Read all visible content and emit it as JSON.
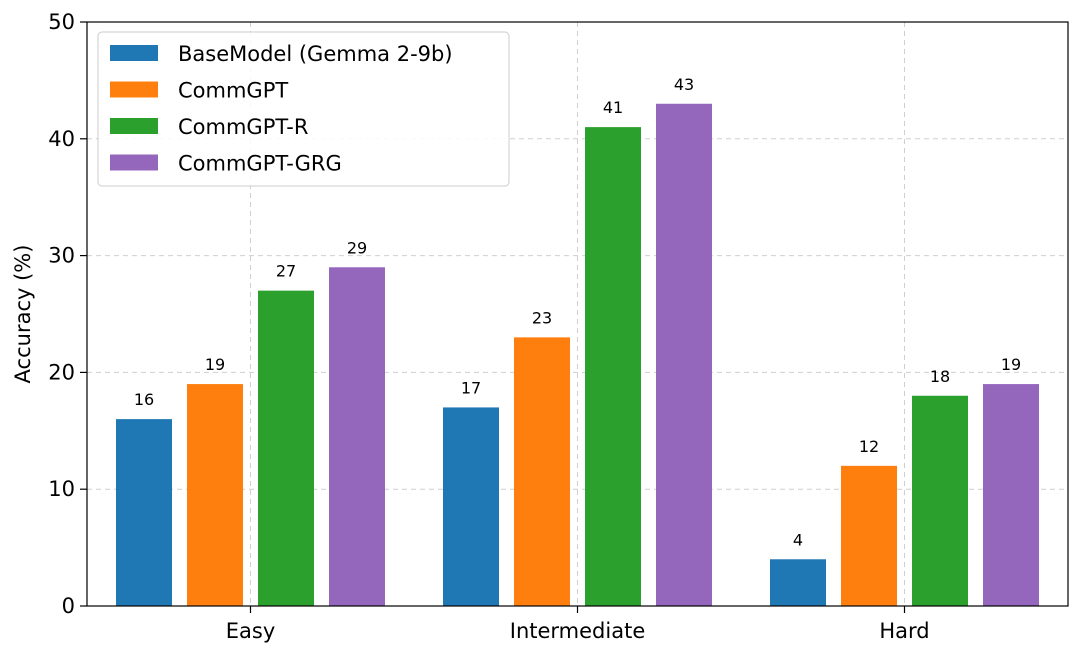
{
  "chart_data": {
    "type": "bar",
    "categories": [
      "Easy",
      "Intermediate",
      "Hard"
    ],
    "series": [
      {
        "name": "BaseModel (Gemma 2-9b)",
        "color": "#1f77b4",
        "values": [
          16,
          17,
          4
        ]
      },
      {
        "name": "CommGPT",
        "color": "#ff7f0e",
        "values": [
          19,
          23,
          12
        ]
      },
      {
        "name": "CommGPT-R",
        "color": "#2ca02c",
        "values": [
          27,
          41,
          18
        ]
      },
      {
        "name": "CommGPT-GRG",
        "color": "#9467bd",
        "values": [
          29,
          43,
          19
        ]
      }
    ],
    "title": "",
    "xlabel": "",
    "ylabel": "Accuracy (%)",
    "ylim": [
      0,
      50
    ],
    "yticks": [
      0,
      10,
      20,
      30,
      40,
      50
    ],
    "grid": true,
    "legend_position": "top-left"
  }
}
